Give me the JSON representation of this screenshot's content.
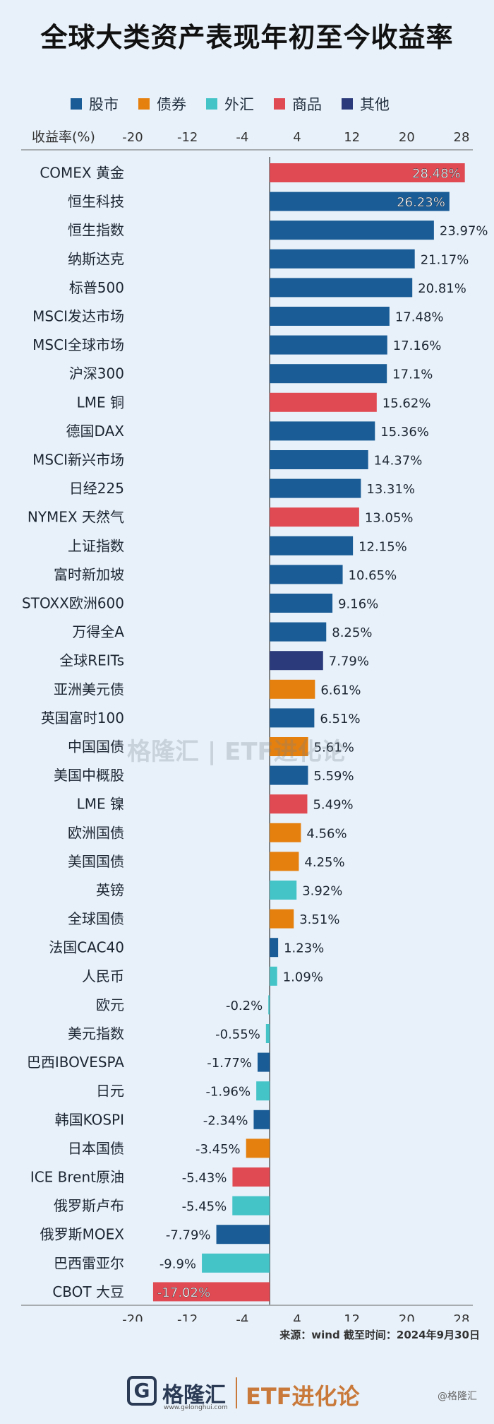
{
  "title": "全球大类资产表现年初至今收益率",
  "legend": [
    {
      "label": "股市",
      "color": "#1a5c96"
    },
    {
      "label": "债券",
      "color": "#e5800f"
    },
    {
      "label": "外汇",
      "color": "#45c4c8"
    },
    {
      "label": "商品",
      "color": "#e04a52"
    },
    {
      "label": "其他",
      "color": "#2b3a7a"
    }
  ],
  "axis_label": "收益率(%)",
  "source": "来源：wind 截至时间：2024年9月30日",
  "watermark": "格隆汇 | ETF进化论",
  "brand": {
    "logo": "G",
    "logo_text": "格隆汇",
    "url": "www.gelonghui.com",
    "name": "ETF进化论",
    "corner": "@格隆汇"
  },
  "chart_data": {
    "type": "bar",
    "orientation": "horizontal",
    "title": "全球大类资产表现年初至今收益率",
    "xlabel": "收益率(%)",
    "xlim": [
      -20,
      28
    ],
    "xticks": [
      -20,
      -12,
      -4,
      4,
      12,
      20,
      28
    ],
    "categories": [
      "COMEX 黄金",
      "恒生科技",
      "恒生指数",
      "纳斯达克",
      "标普500",
      "MSCI发达市场",
      "MSCI全球市场",
      "沪深300",
      "LME 铜",
      "德国DAX",
      "MSCI新兴市场",
      "日经225",
      "NYMEX 天然气",
      "上证指数",
      "富时新加坡",
      "STOXX欧洲600",
      "万得全A",
      "全球REITs",
      "亚洲美元债",
      "英国富时100",
      "中国国债",
      "美国中概股",
      "LME 镍",
      "欧洲国债",
      "美国国债",
      "英镑",
      "全球国债",
      "法国CAC40",
      "人民币",
      "欧元",
      "美元指数",
      "巴西IBOVESPA",
      "日元",
      "韩国KOSPI",
      "日本国债",
      "ICE Brent原油",
      "俄罗斯卢布",
      "俄罗斯MOEX",
      "巴西雷亚尔",
      "CBOT 大豆"
    ],
    "values": [
      28.48,
      26.23,
      23.97,
      21.17,
      20.81,
      17.48,
      17.16,
      17.1,
      15.62,
      15.36,
      14.37,
      13.31,
      13.05,
      12.15,
      10.65,
      9.16,
      8.25,
      7.79,
      6.61,
      6.51,
      5.61,
      5.59,
      5.49,
      4.56,
      4.25,
      3.92,
      3.51,
      1.23,
      1.09,
      -0.2,
      -0.55,
      -1.77,
      -1.96,
      -2.34,
      -3.45,
      -5.43,
      -5.45,
      -7.79,
      -9.9,
      -17.02
    ],
    "value_labels": [
      "28.48%",
      "26.23%",
      "23.97%",
      "21.17%",
      "20.81%",
      "17.48%",
      "17.16%",
      "17.1%",
      "15.62%",
      "15.36%",
      "14.37%",
      "13.31%",
      "13.05%",
      "12.15%",
      "10.65%",
      "9.16%",
      "8.25%",
      "7.79%",
      "6.61%",
      "6.51%",
      "5.61%",
      "5.59%",
      "5.49%",
      "4.56%",
      "4.25%",
      "3.92%",
      "3.51%",
      "1.23%",
      "1.09%",
      "-0.2%",
      "-0.55%",
      "-1.77%",
      "-1.96%",
      "-2.34%",
      "-3.45%",
      "-5.43%",
      "-5.45%",
      "-7.79%",
      "-9.9%",
      "-17.02%"
    ],
    "groups": [
      "商品",
      "股市",
      "股市",
      "股市",
      "股市",
      "股市",
      "股市",
      "股市",
      "商品",
      "股市",
      "股市",
      "股市",
      "商品",
      "股市",
      "股市",
      "股市",
      "股市",
      "其他",
      "债券",
      "股市",
      "债券",
      "股市",
      "商品",
      "债券",
      "债券",
      "外汇",
      "债券",
      "股市",
      "外汇",
      "外汇",
      "外汇",
      "股市",
      "外汇",
      "股市",
      "债券",
      "商品",
      "外汇",
      "股市",
      "外汇",
      "商品"
    ],
    "inside_labels": [
      true,
      true,
      false,
      false,
      false,
      false,
      false,
      false,
      false,
      false,
      false,
      false,
      false,
      false,
      false,
      false,
      false,
      false,
      false,
      false,
      false,
      false,
      false,
      false,
      false,
      false,
      false,
      false,
      false,
      false,
      false,
      false,
      false,
      false,
      false,
      false,
      false,
      false,
      false,
      true
    ]
  }
}
